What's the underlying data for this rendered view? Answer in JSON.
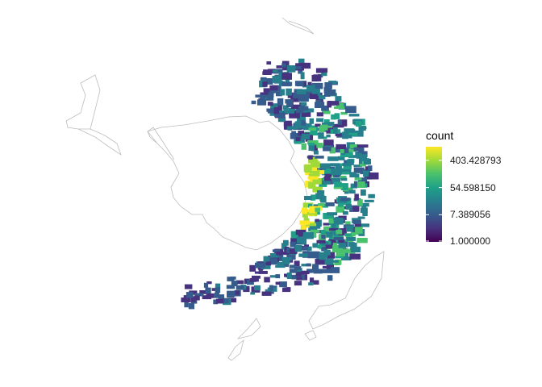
{
  "legend": {
    "title": "count",
    "scale": "log",
    "colors": [
      "#440154",
      "#46327e",
      "#365c8d",
      "#277f8e",
      "#1fa187",
      "#4ac16d",
      "#a0da39",
      "#fde725"
    ],
    "breaks": [
      {
        "label": "403.428793",
        "value": 403.428793
      },
      {
        "label": "54.598150",
        "value": 54.59815
      },
      {
        "label": "7.389056",
        "value": 7.389056
      },
      {
        "label": "1.000000",
        "value": 1.0
      }
    ]
  },
  "map": {
    "projection": "south-polar",
    "coastline_color": "#bdbdbd",
    "layer": "binned observation counts"
  }
}
